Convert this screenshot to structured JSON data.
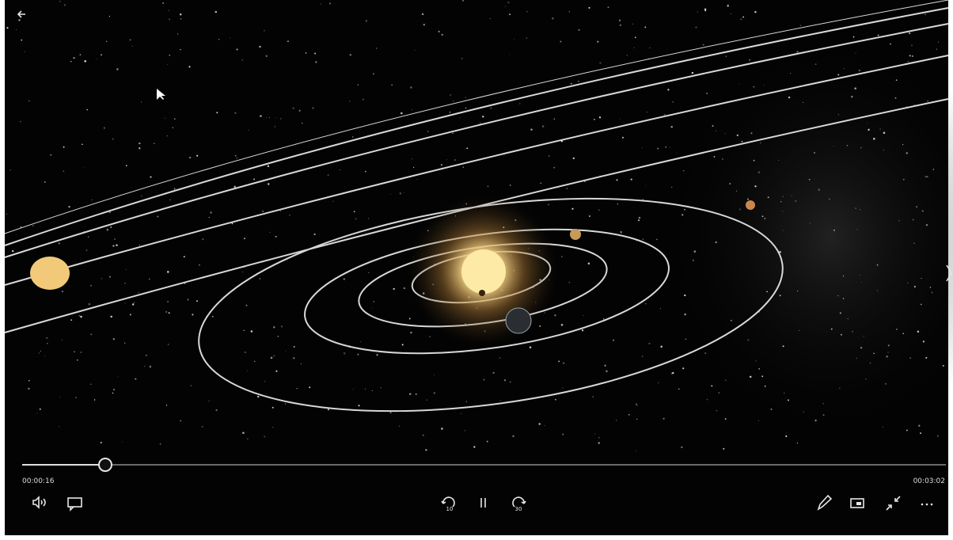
{
  "player": {
    "elapsed": "00:00:16",
    "duration": "00:03:02",
    "skip_back": "10",
    "skip_forward": "30"
  }
}
